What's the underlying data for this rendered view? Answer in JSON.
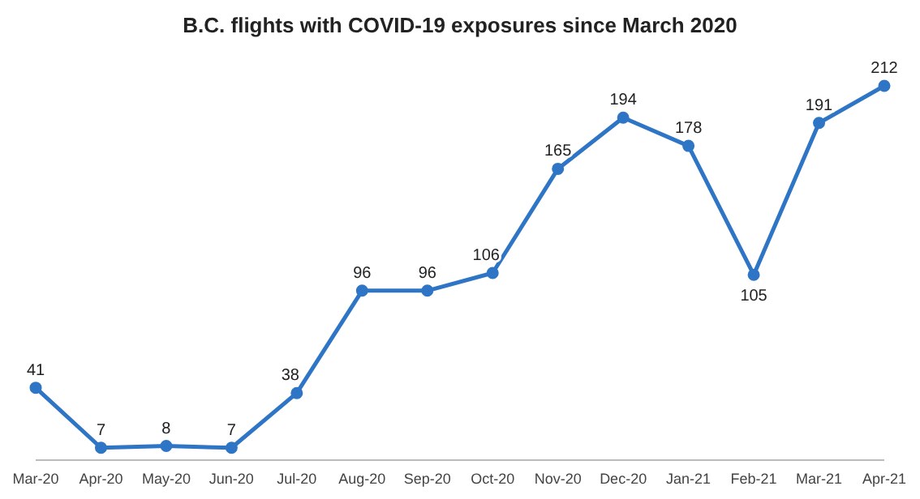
{
  "chart_data": {
    "type": "line",
    "title": "B.C. flights with COVID-19 exposures since March 2020",
    "categories": [
      "Mar-20",
      "Apr-20",
      "May-20",
      "Jun-20",
      "Jul-20",
      "Aug-20",
      "Sep-20",
      "Oct-20",
      "Nov-20",
      "Dec-20",
      "Jan-21",
      "Feb-21",
      "Mar-21",
      "Apr-21"
    ],
    "series": [
      {
        "color": "#2e75c6",
        "values": [
          41,
          7,
          8,
          7,
          38,
          96,
          96,
          106,
          165,
          194,
          178,
          105,
          191,
          212
        ]
      }
    ],
    "data_labels": true,
    "marker": "circle",
    "line_style": "solid",
    "tick_labels": "x"
  }
}
